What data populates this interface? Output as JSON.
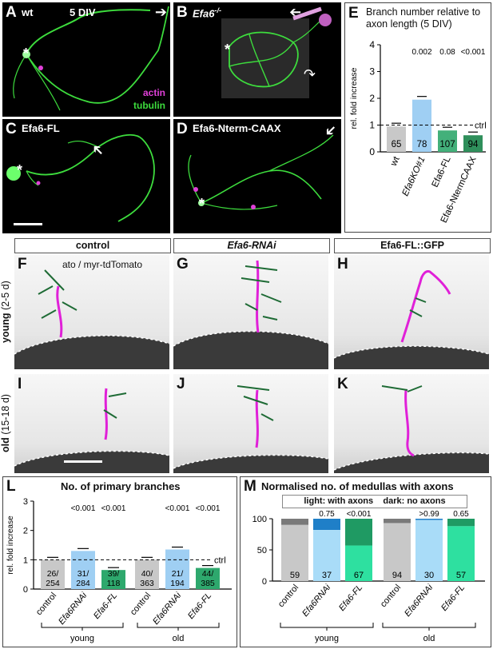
{
  "panels": {
    "A": {
      "letter": "A",
      "label": "wt",
      "div": "5 DIV",
      "legend_actin": "actin",
      "legend_tubulin": "tubulin"
    },
    "B": {
      "letter": "B",
      "label": "Efa6",
      "label_sup": "-/-"
    },
    "C": {
      "letter": "C",
      "label": "Efa6-FL"
    },
    "D": {
      "letter": "D",
      "label": "Efa6-Nterm-CAAX"
    },
    "F": {
      "letter": "F",
      "caption": "ato / myr-tdTomato"
    },
    "G": {
      "letter": "G"
    },
    "H": {
      "letter": "H"
    },
    "I": {
      "letter": "I"
    },
    "J": {
      "letter": "J"
    },
    "K": {
      "letter": "K"
    }
  },
  "column_headers": [
    "control",
    "Efa6-RNAi",
    "Efa6-FL::GFP"
  ],
  "row_labels": {
    "young": "young",
    "young_range": "(2-5 d)",
    "old": "old",
    "old_range": "(15-18 d)"
  },
  "chart_data": [
    {
      "letter": "E",
      "type": "bar",
      "title": "Branch number relative to axon length (5 DIV)",
      "ylabel": "rel. fold increase",
      "ylim": [
        0,
        4
      ],
      "yticks": [
        "0",
        "1",
        "2",
        "3",
        "4"
      ],
      "categories": [
        "wt",
        "Efa6KO#1",
        "Efa6-FL",
        "Efa6-NtermCAAX"
      ],
      "values": [
        0.95,
        1.95,
        0.8,
        0.62
      ],
      "n": [
        "65",
        "78",
        "107",
        "94"
      ],
      "pvalues": [
        "",
        "0.002",
        "0.08",
        "<0.001"
      ],
      "refline": 1,
      "reflabel": "ctrl",
      "colors": [
        "#c8c8c8",
        "#9fcff3",
        "#43b07a",
        "#2f8f5b"
      ]
    },
    {
      "letter": "L",
      "type": "bar",
      "title": "No. of primary branches",
      "ylabel": "rel. fold increase",
      "ylim": [
        0,
        3
      ],
      "yticks": [
        "0",
        "1",
        "2",
        "3"
      ],
      "categories": [
        "control",
        "Efa6RNAi",
        "Efa6-FL",
        "control",
        "Efa6RNAi",
        "Efa6-FL"
      ],
      "values": [
        1.0,
        1.3,
        0.65,
        1.0,
        1.35,
        0.72
      ],
      "n": [
        "26/\n254",
        "31/\n284",
        "39/\n118",
        "40/\n363",
        "21/\n194",
        "44/\n385"
      ],
      "pvalues": [
        "",
        "<0.001",
        "<0.001",
        "",
        "<0.001",
        "<0.001"
      ],
      "refline": 1,
      "reflabel": "ctrl",
      "groups": [
        "young",
        "old"
      ],
      "colors": [
        "#c8c8c8",
        "#9fcff3",
        "#2ea86d",
        "#c8c8c8",
        "#9fcff3",
        "#2ea86d"
      ]
    },
    {
      "letter": "M",
      "type": "bar",
      "title": "Normalised no. of medullas with axons",
      "legend_light": "light: with axons",
      "legend_dark": "dark: no axons",
      "ylim": [
        0,
        100
      ],
      "yticks": [
        "0",
        "50",
        "100"
      ],
      "categories": [
        "control",
        "Efa6RNAi",
        "Efa6-FL",
        "control",
        "Efa6RNAi",
        "Efa6-FL"
      ],
      "with_axons": [
        90,
        82,
        57,
        93,
        98,
        88
      ],
      "n": [
        "59",
        "37",
        "67",
        "94",
        "30",
        "57"
      ],
      "pvalues": [
        "",
        "0.75",
        "<0.001",
        "",
        ">0.99",
        "0.65"
      ],
      "groups": [
        "young",
        "old"
      ],
      "light_colors": [
        "#c8c8c8",
        "#a9dcf8",
        "#2ee0a0",
        "#c8c8c8",
        "#a9dcf8",
        "#2ee0a0"
      ],
      "dark_colors": [
        "#7a7a7a",
        "#1f7fc8",
        "#1f9a63",
        "#7a7a7a",
        "#1f7fc8",
        "#1f9a63"
      ]
    }
  ],
  "colors": {
    "actin": "#e040d8",
    "tubulin": "#3ddc3d",
    "magenta_trace": "#e020d8",
    "green_trace": "#1e6b35"
  }
}
